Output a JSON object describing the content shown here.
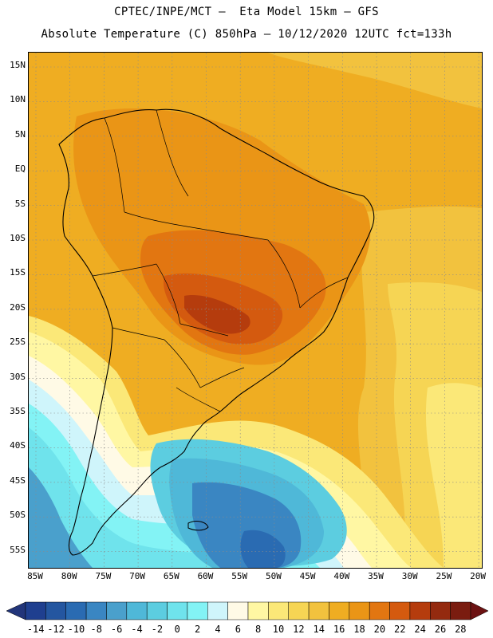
{
  "title_line1": "CPTEC/INPE/MCT —  Eta Model 15km — GFS",
  "title_line2": "Absolute Temperature (C) 850hPa — 10/12/2020 12UTC fct=133h",
  "lat_labels": [
    "15N",
    "10N",
    "5N",
    "EQ",
    "5S",
    "10S",
    "15S",
    "20S",
    "25S",
    "30S",
    "35S",
    "40S",
    "45S",
    "50S",
    "55S"
  ],
  "lon_labels": [
    "85W",
    "80W",
    "75W",
    "70W",
    "65W",
    "60W",
    "55W",
    "50W",
    "45W",
    "40W",
    "35W",
    "30W",
    "25W",
    "20W"
  ],
  "colorbar": {
    "labels": [
      "-14",
      "-12",
      "-10",
      "-8",
      "-6",
      "-4",
      "-2",
      "0",
      "2",
      "4",
      "6",
      "8",
      "10",
      "12",
      "14",
      "16",
      "18",
      "20",
      "22",
      "24",
      "26",
      "28"
    ],
    "colors": [
      "#1f3f8f",
      "#2456a0",
      "#2a6bb2",
      "#3a86c2",
      "#4aa0cc",
      "#4fb8d8",
      "#5ccde0",
      "#6fe3ec",
      "#83f3f5",
      "#cff5fb",
      "#fffae6",
      "#fff7a3",
      "#fbe878",
      "#f6d554",
      "#f2c23e",
      "#efad22",
      "#ea9516",
      "#e27611",
      "#d45a0f",
      "#b53c0d",
      "#942a0f",
      "#7a1c10"
    ],
    "under_color": "#22357a",
    "over_color": "#6c1212"
  }
}
